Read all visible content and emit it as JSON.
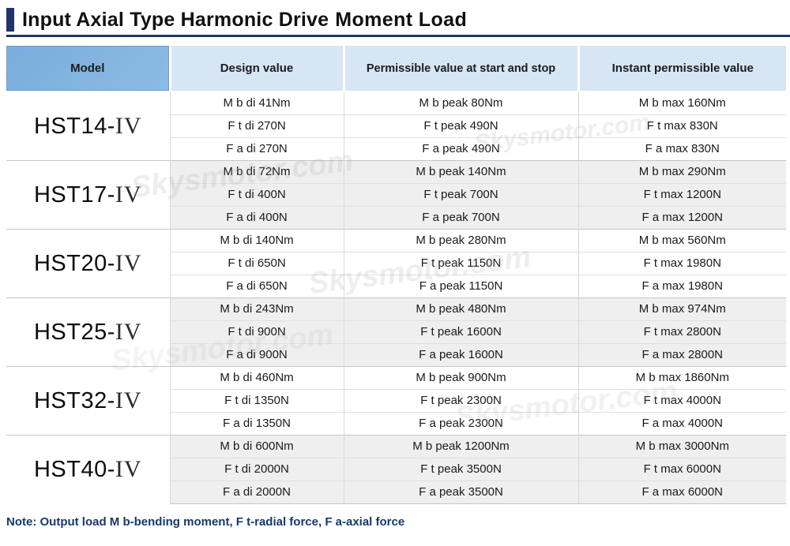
{
  "title": {
    "part1": "Input Axial Type Harmonic Drive",
    "part2": "Moment Load"
  },
  "watermark": {
    "text": "Skysmotor.com"
  },
  "colors": {
    "accent_navy": "#1f3568",
    "header_model_bg": "#82b4e0",
    "header_light_bg": "#d7e6f5",
    "block_alt_bg": "#efefef",
    "note_text": "#16386e"
  },
  "table": {
    "headers": [
      "Model",
      "Design value",
      "Permissible value at start and stop",
      "Instant permissible value"
    ],
    "blocks": [
      {
        "model_prefix": "HST14-",
        "model_suffix": "IV",
        "rows": [
          {
            "design": "M b di 41Nm",
            "permissible": "M b peak 80Nm",
            "instant": "M b max 160Nm"
          },
          {
            "design": "F t di 270N",
            "permissible": "F t peak 490N",
            "instant": "F t max 830N"
          },
          {
            "design": "F a di 270N",
            "permissible": "F a peak 490N",
            "instant": "F a max 830N"
          }
        ]
      },
      {
        "model_prefix": "HST17-",
        "model_suffix": "IV",
        "rows": [
          {
            "design": "M b di 72Nm",
            "permissible": "M b peak 140Nm",
            "instant": "M b max 290Nm"
          },
          {
            "design": "F t di 400N",
            "permissible": "F t peak 700N",
            "instant": "F t max 1200N"
          },
          {
            "design": "F a di 400N",
            "permissible": "F a peak 700N",
            "instant": "F a max 1200N"
          }
        ]
      },
      {
        "model_prefix": "HST20-",
        "model_suffix": "IV",
        "rows": [
          {
            "design": "M b di 140Nm",
            "permissible": "M b peak 280Nm",
            "instant": "M b max 560Nm"
          },
          {
            "design": "F t di 650N",
            "permissible": "F t peak 1150N",
            "instant": "F t max 1980N"
          },
          {
            "design": "F a di 650N",
            "permissible": "F a peak 1150N",
            "instant": "F a max 1980N"
          }
        ]
      },
      {
        "model_prefix": "HST25-",
        "model_suffix": "IV",
        "rows": [
          {
            "design": "M b di 243Nm",
            "permissible": "M b peak 480Nm",
            "instant": "M b max 974Nm"
          },
          {
            "design": "F t di 900N",
            "permissible": "F t peak 1600N",
            "instant": "F t max 2800N"
          },
          {
            "design": "F a di 900N",
            "permissible": "F a peak 1600N",
            "instant": "F a max 2800N"
          }
        ]
      },
      {
        "model_prefix": "HST32-",
        "model_suffix": "IV",
        "rows": [
          {
            "design": "M b di 460Nm",
            "permissible": "M b peak 900Nm",
            "instant": "M b max 1860Nm"
          },
          {
            "design": "F t di 1350N",
            "permissible": "F t peak 2300N",
            "instant": "F t max 4000N"
          },
          {
            "design": "F a di 1350N",
            "permissible": "F a peak 2300N",
            "instant": "F a max 4000N"
          }
        ]
      },
      {
        "model_prefix": "HST40-",
        "model_suffix": "IV",
        "rows": [
          {
            "design": "M b di 600Nm",
            "permissible": "M b peak 1200Nm",
            "instant": "M b max 3000Nm"
          },
          {
            "design": "F t di 2000N",
            "permissible": "F t peak 3500N",
            "instant": "F t max 6000N"
          },
          {
            "design": "F a di 2000N",
            "permissible": "F a peak 3500N",
            "instant": "F a max 6000N"
          }
        ]
      }
    ]
  },
  "note": "Note: Output load M b-bending moment, F t-radial force, F a-axial force"
}
